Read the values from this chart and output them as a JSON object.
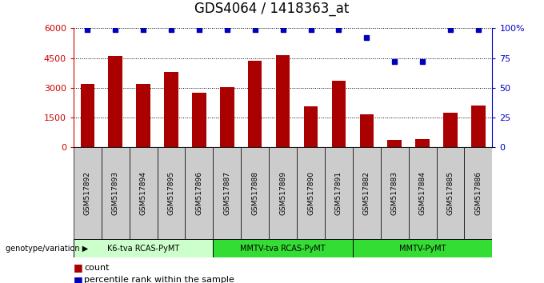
{
  "title": "GDS4064 / 1418363_at",
  "samples": [
    "GSM517892",
    "GSM517893",
    "GSM517894",
    "GSM517895",
    "GSM517896",
    "GSM517887",
    "GSM517888",
    "GSM517889",
    "GSM517890",
    "GSM517891",
    "GSM517882",
    "GSM517883",
    "GSM517884",
    "GSM517885",
    "GSM517886"
  ],
  "counts": [
    3200,
    4600,
    3200,
    3800,
    2750,
    3050,
    4350,
    4650,
    2050,
    3350,
    1650,
    380,
    420,
    1750,
    2100
  ],
  "percentile_ranks": [
    99,
    99,
    99,
    99,
    99,
    99,
    99,
    99,
    99,
    99,
    92,
    72,
    72,
    99,
    99
  ],
  "groups": [
    {
      "label": "K6-tva RCAS-PyMT",
      "start": 0,
      "end": 5,
      "color": "#ccffcc"
    },
    {
      "label": "MMTV-tva RCAS-PyMT",
      "start": 5,
      "end": 10,
      "color": "#33dd33"
    },
    {
      "label": "MMTV-PyMT",
      "start": 10,
      "end": 15,
      "color": "#33dd33"
    }
  ],
  "bar_color": "#aa0000",
  "dot_color": "#0000bb",
  "left_axis_color": "#cc0000",
  "right_axis_color": "#0000cc",
  "ylim_left": [
    0,
    6000
  ],
  "ylim_right": [
    0,
    100
  ],
  "yticks_left": [
    0,
    1500,
    3000,
    4500,
    6000
  ],
  "yticks_right": [
    0,
    25,
    50,
    75,
    100
  ],
  "sample_bg_color": "#cccccc",
  "background_color": "#ffffff",
  "grid_color": "#000000",
  "xlabel_genotype": "genotype/variation",
  "legend_count": "count",
  "legend_percentile": "percentile rank within the sample",
  "title_fontsize": 12,
  "bar_width": 0.5
}
